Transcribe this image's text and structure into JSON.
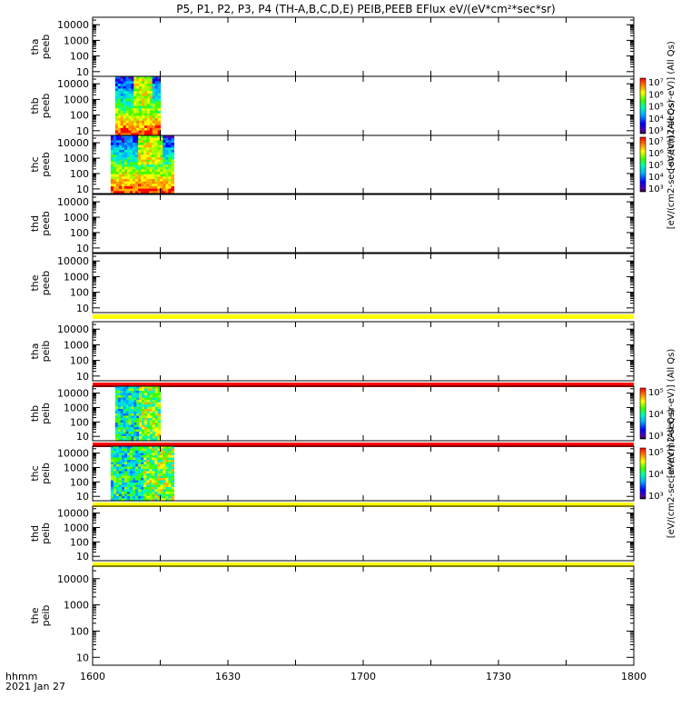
{
  "title": "P5, P1, P2, P3, P4 (TH-A,B,C,D,E) PEIB,PEEB EFlux eV/(eV*cm²*sec*sr)",
  "x_axis": {
    "tick_labels": [
      "1600",
      "1630",
      "1700",
      "1730",
      "1800"
    ],
    "label_line1": "hhmm",
    "label_line2": "2021 Jan 27"
  },
  "y_tick_labels": [
    "10",
    "100",
    "1000",
    "10000"
  ],
  "colorbars": [
    {
      "label": "[eV/(cm2-sec-sr-eV)] (All Qs)",
      "ticks": [
        "10³",
        "10⁴",
        "10⁵",
        "10⁶",
        "10⁷"
      ]
    },
    {
      "label": "[eV/(cm2-sec-sr-eV)] (All Qs)",
      "ticks": [
        "10³",
        "10⁴",
        "10⁵",
        "10⁶",
        "10⁷"
      ]
    },
    {
      "label": "[eV/(cm2-sec-sr-eV)] (All Qs)",
      "ticks": [
        "10³",
        "10⁴",
        "10⁵"
      ]
    },
    {
      "label": "[eV/(cm2-sec-sr-eV)] (All Qs)",
      "ticks": [
        "10³",
        "10⁴",
        "10⁵"
      ]
    }
  ],
  "colors": {
    "yellow_bar": "#ffff00",
    "red_bar": "#ff0000"
  },
  "chart_data": [
    {
      "type": "heatmap",
      "ylabel": "tha peeb",
      "x_range": [
        "1600",
        "1800"
      ],
      "ylog": true,
      "ylim": [
        5,
        30000
      ],
      "data": "none",
      "indicator_bar": "none"
    },
    {
      "type": "heatmap",
      "ylabel": "thb peeb",
      "x_range": [
        "1600",
        "1800"
      ],
      "ylog": true,
      "ylim": [
        5,
        30000
      ],
      "data_x_span": [
        "1605",
        "1615"
      ],
      "indicator_bar": "none"
    },
    {
      "type": "heatmap",
      "ylabel": "thc peeb",
      "x_range": [
        "1600",
        "1800"
      ],
      "ylog": true,
      "ylim": [
        5,
        30000
      ],
      "data_x_span": [
        "1604",
        "1618"
      ],
      "indicator_bar": "none"
    },
    {
      "type": "heatmap",
      "ylabel": "thd peeb",
      "x_range": [
        "1600",
        "1800"
      ],
      "ylog": true,
      "ylim": [
        5,
        30000
      ],
      "data": "none",
      "indicator_bar": "none"
    },
    {
      "type": "heatmap",
      "ylabel": "the peeb",
      "x_range": [
        "1600",
        "1800"
      ],
      "ylog": true,
      "ylim": [
        5,
        30000
      ],
      "data": "none",
      "indicator_bar": "yellow"
    },
    {
      "type": "heatmap",
      "ylabel": "tha peib",
      "x_range": [
        "1600",
        "1800"
      ],
      "ylog": true,
      "ylim": [
        5,
        30000
      ],
      "data": "none",
      "indicator_bar": "red"
    },
    {
      "type": "heatmap",
      "ylabel": "thb peib",
      "x_range": [
        "1600",
        "1800"
      ],
      "ylog": true,
      "ylim": [
        5,
        30000
      ],
      "data_x_span": [
        "1605",
        "1615"
      ],
      "indicator_bar": "red"
    },
    {
      "type": "heatmap",
      "ylabel": "thc peib",
      "x_range": [
        "1600",
        "1800"
      ],
      "ylog": true,
      "ylim": [
        5,
        30000
      ],
      "data_x_span": [
        "1604",
        "1618"
      ],
      "indicator_bar": "yellow"
    },
    {
      "type": "heatmap",
      "ylabel": "thd peib",
      "x_range": [
        "1600",
        "1800"
      ],
      "ylog": true,
      "ylim": [
        5,
        30000
      ],
      "data": "none",
      "indicator_bar": "yellow"
    },
    {
      "type": "heatmap",
      "ylabel": "the peib",
      "x_range": [
        "1600",
        "1800"
      ],
      "ylog": true,
      "ylim": [
        5,
        30000
      ],
      "data": "none",
      "indicator_bar": "none"
    }
  ]
}
